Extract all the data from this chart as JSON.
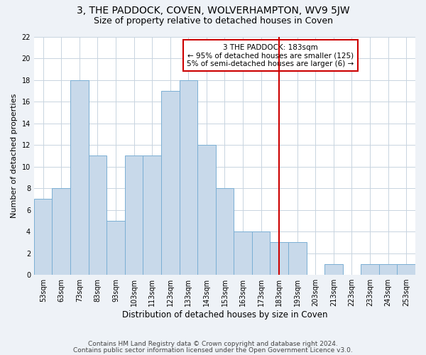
{
  "title1": "3, THE PADDOCK, COVEN, WOLVERHAMPTON, WV9 5JW",
  "title2": "Size of property relative to detached houses in Coven",
  "xlabel": "Distribution of detached houses by size in Coven",
  "ylabel": "Number of detached properties",
  "categories": [
    "53sqm",
    "63sqm",
    "73sqm",
    "83sqm",
    "93sqm",
    "103sqm",
    "113sqm",
    "123sqm",
    "133sqm",
    "143sqm",
    "153sqm",
    "163sqm",
    "173sqm",
    "183sqm",
    "193sqm",
    "203sqm",
    "213sqm",
    "223sqm",
    "233sqm",
    "243sqm",
    "253sqm"
  ],
  "values": [
    7,
    8,
    18,
    11,
    5,
    11,
    11,
    17,
    18,
    12,
    8,
    4,
    4,
    3,
    3,
    0,
    1,
    0,
    1,
    1,
    1
  ],
  "bar_color": "#c8d9ea",
  "bar_edgecolor": "#7aafd4",
  "vline_index": 13,
  "vline_color": "#cc0000",
  "annotation_text": "3 THE PADDOCK: 183sqm\n← 95% of detached houses are smaller (125)\n5% of semi-detached houses are larger (6) →",
  "annotation_box_edgecolor": "#cc0000",
  "annotation_fontsize": 7.5,
  "ylim": [
    0,
    22
  ],
  "yticks": [
    0,
    2,
    4,
    6,
    8,
    10,
    12,
    14,
    16,
    18,
    20,
    22
  ],
  "footer1": "Contains HM Land Registry data © Crown copyright and database right 2024.",
  "footer2": "Contains public sector information licensed under the Open Government Licence v3.0.",
  "background_color": "#eef2f7",
  "plot_background_color": "#ffffff",
  "grid_color": "#c8d4e0",
  "title1_fontsize": 10,
  "title2_fontsize": 9,
  "xlabel_fontsize": 8.5,
  "ylabel_fontsize": 8,
  "tick_fontsize": 7,
  "footer_fontsize": 6.5
}
